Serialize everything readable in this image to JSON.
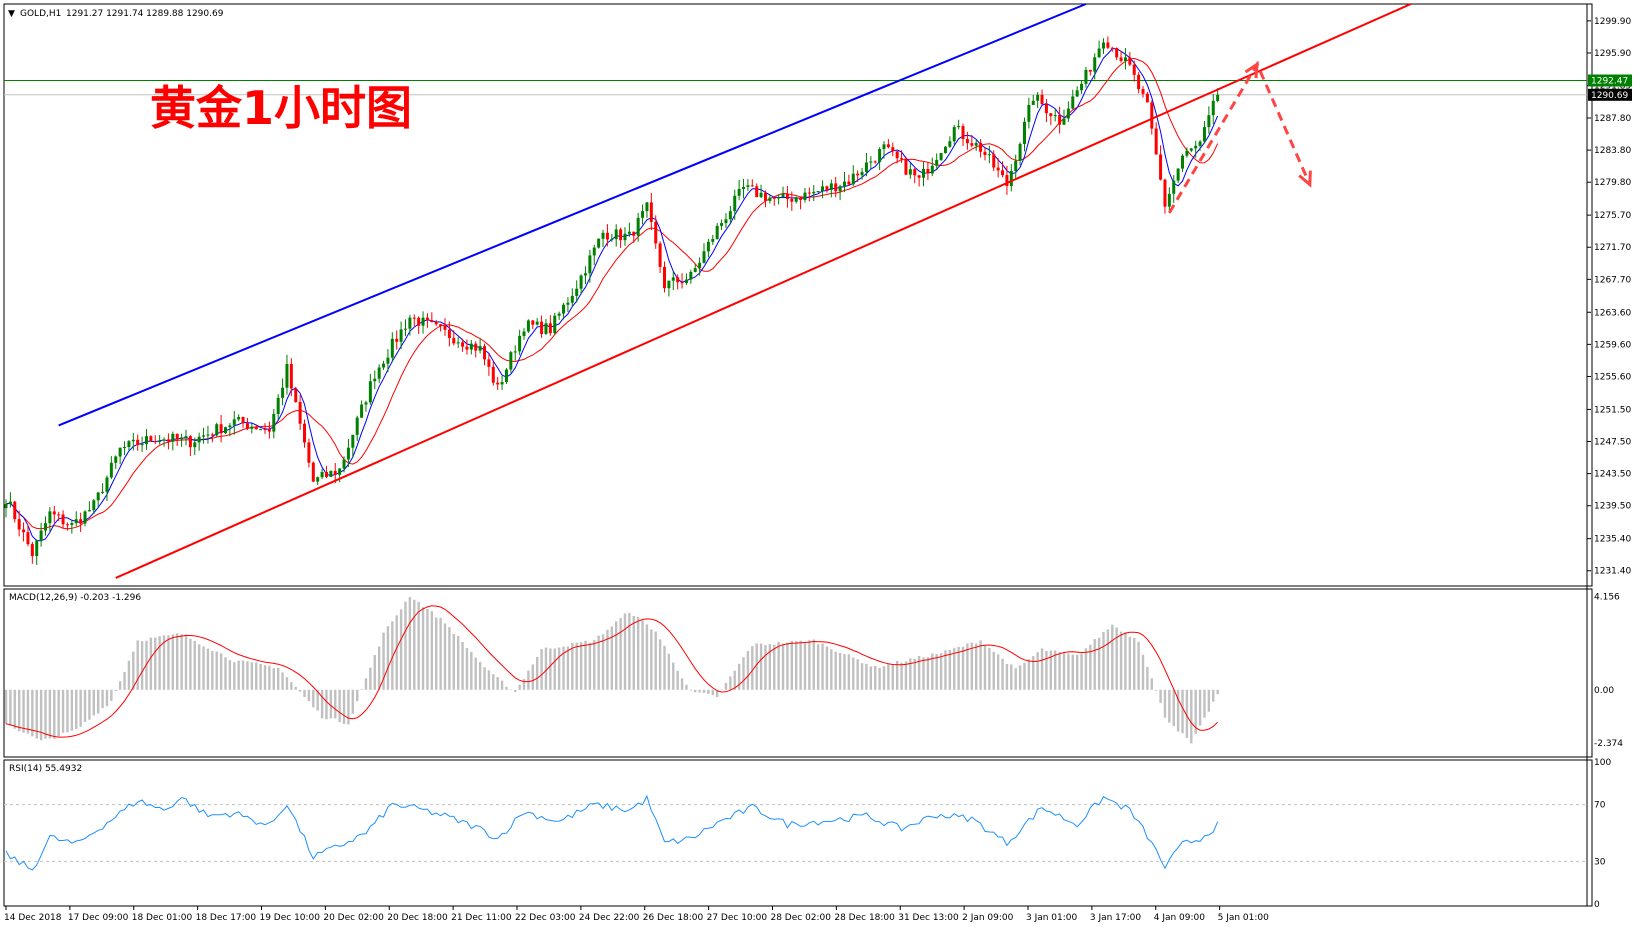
{
  "header": {
    "symbol": "GOLD,H1",
    "ohlc": "1291.27 1291.74 1289.88 1290.69"
  },
  "annotation": "黄金1小时图",
  "chart_data": [
    {
      "type": "candlestick",
      "symbol": "GOLD",
      "timeframe": "H1",
      "ylim": [
        1229.5,
        1302.0
      ],
      "y_ticks": [
        "1299.90",
        "1295.90",
        "1291.85",
        "1287.80",
        "1283.80",
        "1279.80",
        "1275.70",
        "1271.70",
        "1267.70",
        "1263.60",
        "1259.60",
        "1255.60",
        "1251.50",
        "1247.50",
        "1243.50",
        "1239.50",
        "1235.40",
        "1231.40"
      ],
      "x_ticks": [
        "14 Dec 2018",
        "17 Dec 09:00",
        "18 Dec 01:00",
        "18 Dec 17:00",
        "19 Dec 10:00",
        "20 Dec 02:00",
        "20 Dec 18:00",
        "21 Dec 11:00",
        "22 Dec 03:00",
        "24 Dec 22:00",
        "26 Dec 18:00",
        "27 Dec 10:00",
        "28 Dec 02:00",
        "28 Dec 18:00",
        "31 Dec 13:00",
        "2 Jan 09:00",
        "3 Jan 01:00",
        "3 Jan 17:00",
        "4 Jan 09:00",
        "5 Jan 01:00"
      ],
      "current_price": "1290.69",
      "line_price": "1292.47",
      "line_price_value": 1292.47,
      "current_price_value": 1290.69,
      "key_points": [
        {
          "t": 0,
          "v": 1240.5
        },
        {
          "t": 6,
          "v": 1233.5
        },
        {
          "t": 10,
          "v": 1238.5
        },
        {
          "t": 15,
          "v": 1237.0
        },
        {
          "t": 20,
          "v": 1239.5
        },
        {
          "t": 26,
          "v": 1246.5
        },
        {
          "t": 34,
          "v": 1248.0
        },
        {
          "t": 42,
          "v": 1247.5
        },
        {
          "t": 52,
          "v": 1250.0
        },
        {
          "t": 60,
          "v": 1249.0
        },
        {
          "t": 64,
          "v": 1256.5
        },
        {
          "t": 70,
          "v": 1242.5
        },
        {
          "t": 76,
          "v": 1244.0
        },
        {
          "t": 84,
          "v": 1256.0
        },
        {
          "t": 92,
          "v": 1263.0
        },
        {
          "t": 100,
          "v": 1261.0
        },
        {
          "t": 108,
          "v": 1259.0
        },
        {
          "t": 112,
          "v": 1254.0
        },
        {
          "t": 118,
          "v": 1262.0
        },
        {
          "t": 124,
          "v": 1261.5
        },
        {
          "t": 130,
          "v": 1267.0
        },
        {
          "t": 136,
          "v": 1273.5
        },
        {
          "t": 142,
          "v": 1273.0
        },
        {
          "t": 146,
          "v": 1276.5
        },
        {
          "t": 150,
          "v": 1267.0
        },
        {
          "t": 156,
          "v": 1268.0
        },
        {
          "t": 162,
          "v": 1274.0
        },
        {
          "t": 168,
          "v": 1279.0
        },
        {
          "t": 176,
          "v": 1277.5
        },
        {
          "t": 184,
          "v": 1278.5
        },
        {
          "t": 192,
          "v": 1280.0
        },
        {
          "t": 200,
          "v": 1284.0
        },
        {
          "t": 208,
          "v": 1280.0
        },
        {
          "t": 216,
          "v": 1286.5
        },
        {
          "t": 222,
          "v": 1284.0
        },
        {
          "t": 228,
          "v": 1279.5
        },
        {
          "t": 234,
          "v": 1290.5
        },
        {
          "t": 240,
          "v": 1287.5
        },
        {
          "t": 246,
          "v": 1293.0
        },
        {
          "t": 250,
          "v": 1298.0
        },
        {
          "t": 256,
          "v": 1294.0
        },
        {
          "t": 260,
          "v": 1289.0
        },
        {
          "t": 264,
          "v": 1277.0
        },
        {
          "t": 268,
          "v": 1283.0
        },
        {
          "t": 272,
          "v": 1284.5
        },
        {
          "t": 276,
          "v": 1290.7
        }
      ],
      "ma_fast_color": "#0000ff",
      "ma_slow_color": "#ff0000",
      "bull_color": "#008000",
      "bear_color": "#ff0000",
      "channel_upper": {
        "color": "#0000ff",
        "points": [
          {
            "t": 12,
            "v": 1249.5
          },
          {
            "t": 246,
            "v": 1302.0
          }
        ]
      },
      "channel_lower": {
        "color": "#ff0000",
        "points": [
          {
            "t": 25,
            "v": 1230.5
          },
          {
            "t": 320,
            "v": 1302.0
          }
        ]
      },
      "projection": {
        "color": "#ff4444",
        "points": [
          {
            "t": 265,
            "v": 1276.0
          },
          {
            "t": 285,
            "v": 1294.5
          },
          {
            "t": 297,
            "v": 1279.5
          }
        ]
      }
    },
    {
      "type": "bar",
      "name": "MACD",
      "label": "MACD(12,26,9) -0.203 -1.296",
      "ylim": [
        -3.0,
        4.5
      ],
      "y_ticks": [
        "4.156",
        "0.00",
        "-2.374"
      ],
      "key_points": [
        {
          "t": 0,
          "v": -1.5
        },
        {
          "t": 8,
          "v": -2.3
        },
        {
          "t": 16,
          "v": -1.8
        },
        {
          "t": 24,
          "v": -0.5
        },
        {
          "t": 30,
          "v": 2.2
        },
        {
          "t": 40,
          "v": 2.5
        },
        {
          "t": 52,
          "v": 1.3
        },
        {
          "t": 62,
          "v": 1.0
        },
        {
          "t": 72,
          "v": -1.2
        },
        {
          "t": 78,
          "v": -1.5
        },
        {
          "t": 86,
          "v": 2.5
        },
        {
          "t": 92,
          "v": 4.2
        },
        {
          "t": 100,
          "v": 3.0
        },
        {
          "t": 110,
          "v": 0.8
        },
        {
          "t": 116,
          "v": -0.1
        },
        {
          "t": 122,
          "v": 1.8
        },
        {
          "t": 134,
          "v": 2.2
        },
        {
          "t": 142,
          "v": 3.5
        },
        {
          "t": 148,
          "v": 2.6
        },
        {
          "t": 156,
          "v": -0.1
        },
        {
          "t": 162,
          "v": -0.3
        },
        {
          "t": 170,
          "v": 2.0
        },
        {
          "t": 184,
          "v": 2.2
        },
        {
          "t": 198,
          "v": 1.0
        },
        {
          "t": 214,
          "v": 1.7
        },
        {
          "t": 222,
          "v": 2.2
        },
        {
          "t": 230,
          "v": 0.9
        },
        {
          "t": 236,
          "v": 1.8
        },
        {
          "t": 244,
          "v": 1.5
        },
        {
          "t": 252,
          "v": 2.9
        },
        {
          "t": 258,
          "v": 2.2
        },
        {
          "t": 264,
          "v": -1.2
        },
        {
          "t": 270,
          "v": -2.4
        },
        {
          "t": 276,
          "v": -0.2
        }
      ],
      "signal_color": "#ff0000",
      "bar_color": "#c0c0c0"
    },
    {
      "type": "line",
      "name": "RSI",
      "label": "RSI(14) 55.4932",
      "ylim": [
        0,
        100
      ],
      "y_ticks": [
        "100",
        "70",
        "30",
        "0"
      ],
      "levels": [
        70,
        30
      ],
      "key_points": [
        {
          "t": 0,
          "v": 35
        },
        {
          "t": 6,
          "v": 24
        },
        {
          "t": 10,
          "v": 47
        },
        {
          "t": 16,
          "v": 42
        },
        {
          "t": 22,
          "v": 55
        },
        {
          "t": 30,
          "v": 73
        },
        {
          "t": 36,
          "v": 66
        },
        {
          "t": 40,
          "v": 75
        },
        {
          "t": 46,
          "v": 62
        },
        {
          "t": 52,
          "v": 64
        },
        {
          "t": 60,
          "v": 55
        },
        {
          "t": 64,
          "v": 71
        },
        {
          "t": 70,
          "v": 33
        },
        {
          "t": 76,
          "v": 41
        },
        {
          "t": 82,
          "v": 50
        },
        {
          "t": 88,
          "v": 70
        },
        {
          "t": 94,
          "v": 67
        },
        {
          "t": 100,
          "v": 62
        },
        {
          "t": 108,
          "v": 53
        },
        {
          "t": 112,
          "v": 46
        },
        {
          "t": 118,
          "v": 65
        },
        {
          "t": 126,
          "v": 58
        },
        {
          "t": 134,
          "v": 70
        },
        {
          "t": 142,
          "v": 66
        },
        {
          "t": 146,
          "v": 74
        },
        {
          "t": 150,
          "v": 43
        },
        {
          "t": 156,
          "v": 46
        },
        {
          "t": 162,
          "v": 57
        },
        {
          "t": 170,
          "v": 68
        },
        {
          "t": 178,
          "v": 56
        },
        {
          "t": 188,
          "v": 59
        },
        {
          "t": 196,
          "v": 62
        },
        {
          "t": 204,
          "v": 53
        },
        {
          "t": 212,
          "v": 63
        },
        {
          "t": 220,
          "v": 60
        },
        {
          "t": 228,
          "v": 43
        },
        {
          "t": 236,
          "v": 68
        },
        {
          "t": 244,
          "v": 56
        },
        {
          "t": 250,
          "v": 75
        },
        {
          "t": 256,
          "v": 66
        },
        {
          "t": 260,
          "v": 48
        },
        {
          "t": 264,
          "v": 26
        },
        {
          "t": 268,
          "v": 42
        },
        {
          "t": 272,
          "v": 46
        },
        {
          "t": 276,
          "v": 55.5
        }
      ],
      "line_color": "#1e90ff",
      "level_color": "#c0c0c0"
    }
  ]
}
